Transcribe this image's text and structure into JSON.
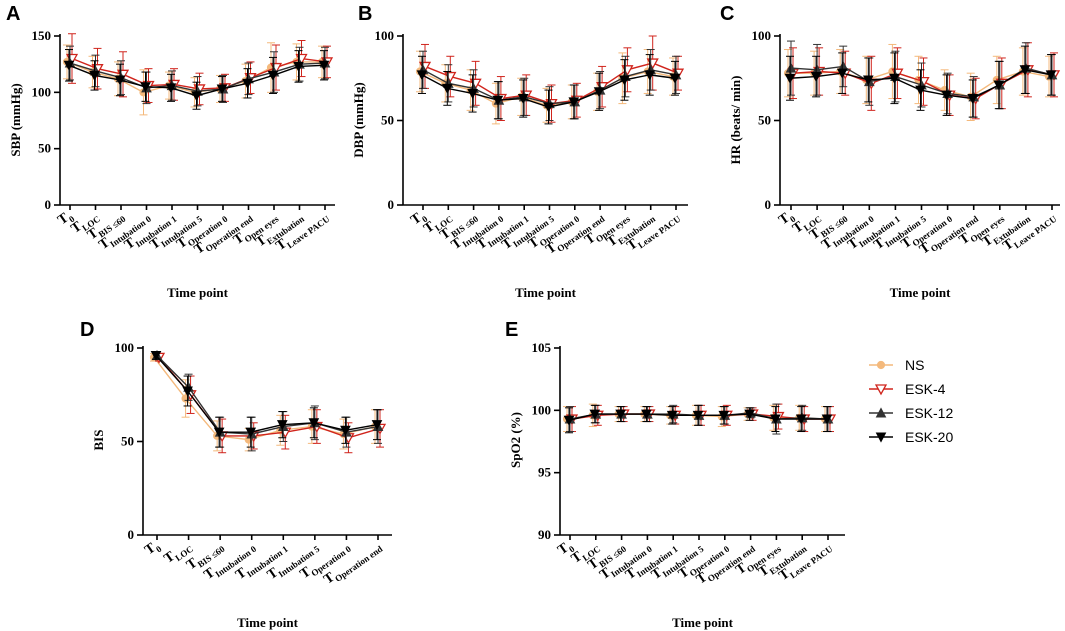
{
  "colors": {
    "NS": "#f4b97c",
    "ESK-4": "#d0241c",
    "ESK-12": "#333333",
    "ESK-20": "#000000"
  },
  "legend": [
    "NS",
    "ESK-4",
    "ESK-12",
    "ESK-20"
  ],
  "chart_data": [
    {
      "id": "A",
      "type": "line",
      "ylabel": "SBP (mmHg)",
      "xlabel": "Time point",
      "ylim": [
        0,
        150
      ],
      "yticks": [
        0,
        50,
        100,
        150
      ],
      "categories": [
        {
          "main": "T",
          "sub": "0"
        },
        {
          "main": "T",
          "sub": "LOC"
        },
        {
          "main": "T",
          "sub": "BIS ≤60"
        },
        {
          "main": "T",
          "sub": "Intubation 0"
        },
        {
          "main": "T",
          "sub": "Intubation 1"
        },
        {
          "main": "T",
          "sub": "Intubation 5"
        },
        {
          "main": "T",
          "sub": "Operation 0"
        },
        {
          "main": "T",
          "sub": "Operation end"
        },
        {
          "main": "T",
          "sub": "Open eyes"
        },
        {
          "main": "T",
          "sub": "Extubation"
        },
        {
          "main": "T",
          "sub": "Leave PACU"
        }
      ],
      "series": [
        {
          "name": "NS",
          "values": [
            127,
            118,
            112,
            100,
            106,
            100,
            103,
            110,
            122,
            127,
            127
          ],
          "err": [
            15,
            14,
            15,
            20,
            12,
            13,
            12,
            15,
            22,
            16,
            14
          ]
        },
        {
          "name": "ESK-4",
          "values": [
            130,
            121,
            116,
            106,
            107,
            103,
            104,
            113,
            122,
            130,
            127
          ],
          "err": [
            22,
            18,
            20,
            15,
            14,
            14,
            12,
            14,
            20,
            16,
            14
          ]
        },
        {
          "name": "ESK-12",
          "values": [
            126,
            119,
            113,
            104,
            106,
            101,
            103,
            112,
            118,
            125,
            126
          ],
          "err": [
            15,
            14,
            15,
            14,
            13,
            13,
            12,
            14,
            18,
            15,
            14
          ]
        },
        {
          "name": "ESK-20",
          "values": [
            124,
            115,
            111,
            105,
            104,
            97,
            103,
            108,
            115,
            123,
            124
          ],
          "err": [
            14,
            13,
            14,
            13,
            12,
            12,
            11,
            13,
            16,
            14,
            13
          ]
        }
      ]
    },
    {
      "id": "B",
      "type": "line",
      "ylabel": "DBP (mmHg)",
      "xlabel": "Time point",
      "ylim": [
        0,
        100
      ],
      "yticks": [
        0,
        50,
        100
      ],
      "categories": [
        {
          "main": "T",
          "sub": "0"
        },
        {
          "main": "T",
          "sub": "LOC"
        },
        {
          "main": "T",
          "sub": "BIS ≤60"
        },
        {
          "main": "T",
          "sub": "Intubation 0"
        },
        {
          "main": "T",
          "sub": "Intubation 1"
        },
        {
          "main": "T",
          "sub": "Intubation 5"
        },
        {
          "main": "T",
          "sub": "Operation 0"
        },
        {
          "main": "T",
          "sub": "Operation end"
        },
        {
          "main": "T",
          "sub": "Open eyes"
        },
        {
          "main": "T",
          "sub": "Extubation"
        },
        {
          "main": "T",
          "sub": "Leave PACU"
        }
      ],
      "series": [
        {
          "name": "NS",
          "values": [
            79,
            72,
            68,
            60,
            64,
            59,
            61,
            67,
            75,
            79,
            76
          ],
          "err": [
            12,
            11,
            12,
            12,
            11,
            10,
            10,
            11,
            15,
            13,
            11
          ]
        },
        {
          "name": "ESK-4",
          "values": [
            82,
            76,
            72,
            63,
            65,
            60,
            62,
            70,
            80,
            84,
            78
          ],
          "err": [
            13,
            12,
            13,
            13,
            12,
            11,
            10,
            12,
            13,
            16,
            10
          ]
        },
        {
          "name": "ESK-12",
          "values": [
            80,
            72,
            69,
            62,
            64,
            60,
            61,
            68,
            76,
            80,
            77
          ],
          "err": [
            11,
            11,
            11,
            11,
            11,
            10,
            10,
            11,
            12,
            12,
            11
          ]
        },
        {
          "name": "ESK-20",
          "values": [
            77,
            69,
            66,
            62,
            63,
            58,
            61,
            67,
            74,
            77,
            75
          ],
          "err": [
            11,
            10,
            11,
            11,
            11,
            10,
            10,
            11,
            12,
            12,
            10
          ]
        }
      ]
    },
    {
      "id": "C",
      "type": "line",
      "ylabel": "HR (beats/ min)",
      "xlabel": "Time point",
      "ylim": [
        0,
        100
      ],
      "yticks": [
        0,
        50,
        100
      ],
      "categories": [
        {
          "main": "T",
          "sub": "0"
        },
        {
          "main": "T",
          "sub": "LOC"
        },
        {
          "main": "T",
          "sub": "BIS ≤60"
        },
        {
          "main": "T",
          "sub": "Intubation 0"
        },
        {
          "main": "T",
          "sub": "Intubation 1"
        },
        {
          "main": "T",
          "sub": "Intubation 5"
        },
        {
          "main": "T",
          "sub": "Operation 0"
        },
        {
          "main": "T",
          "sub": "Operation end"
        },
        {
          "main": "T",
          "sub": "Open eyes"
        },
        {
          "main": "T",
          "sub": "Extubation"
        },
        {
          "main": "T",
          "sub": "Leave PACU"
        }
      ],
      "series": [
        {
          "name": "NS",
          "values": [
            78,
            78,
            79,
            74,
            79,
            74,
            68,
            64,
            74,
            79,
            76
          ],
          "err": [
            14,
            13,
            13,
            14,
            16,
            14,
            12,
            14,
            14,
            14,
            12
          ]
        },
        {
          "name": "ESK-4",
          "values": [
            78,
            79,
            78,
            72,
            78,
            73,
            65,
            63,
            72,
            80,
            77
          ],
          "err": [
            15,
            14,
            13,
            16,
            15,
            14,
            12,
            12,
            15,
            16,
            13
          ]
        },
        {
          "name": "ESK-12",
          "values": [
            81,
            80,
            82,
            73,
            76,
            71,
            66,
            64,
            71,
            81,
            77
          ],
          "err": [
            16,
            15,
            12,
            14,
            15,
            13,
            12,
            12,
            14,
            15,
            12
          ]
        },
        {
          "name": "ESK-20",
          "values": [
            75,
            76,
            78,
            74,
            75,
            68,
            65,
            63,
            71,
            80,
            77
          ],
          "err": [
            13,
            12,
            12,
            13,
            15,
            12,
            12,
            11,
            14,
            14,
            12
          ]
        }
      ]
    },
    {
      "id": "D",
      "type": "line",
      "ylabel": "BIS",
      "xlabel": "Time point",
      "ylim": [
        0,
        100
      ],
      "yticks": [
        0,
        50,
        100
      ],
      "categories": [
        {
          "main": "T",
          "sub": "0"
        },
        {
          "main": "T",
          "sub": "LOC"
        },
        {
          "main": "T",
          "sub": "BIS ≤60"
        },
        {
          "main": "T",
          "sub": "Intubation 0"
        },
        {
          "main": "T",
          "sub": "Intubation 1"
        },
        {
          "main": "T",
          "sub": "Intubation 5"
        },
        {
          "main": "T",
          "sub": "Operation 0"
        },
        {
          "main": "T",
          "sub": "Operation end"
        }
      ],
      "series": [
        {
          "name": "NS",
          "values": [
            95,
            73,
            53,
            51,
            56,
            58,
            54,
            58
          ],
          "err": [
            2,
            10,
            8,
            6,
            8,
            9,
            8,
            9
          ]
        },
        {
          "name": "ESK-4",
          "values": [
            95,
            75,
            53,
            53,
            55,
            58,
            52,
            57
          ],
          "err": [
            2,
            10,
            9,
            7,
            9,
            9,
            8,
            10
          ]
        },
        {
          "name": "ESK-12",
          "values": [
            96,
            79,
            55,
            54,
            58,
            60,
            55,
            58
          ],
          "err": [
            2,
            7,
            8,
            9,
            8,
            9,
            8,
            9
          ]
        },
        {
          "name": "ESK-20",
          "values": [
            96,
            77,
            55,
            55,
            59,
            60,
            56,
            59
          ],
          "err": [
            2,
            8,
            8,
            8,
            7,
            8,
            7,
            8
          ]
        }
      ]
    },
    {
      "id": "E",
      "type": "line",
      "ylabel": "SpO2 (%)",
      "xlabel": "Time point",
      "ylim": [
        90,
        105
      ],
      "yticks": [
        90,
        95,
        100,
        105
      ],
      "categories": [
        {
          "main": "T",
          "sub": "0"
        },
        {
          "main": "T",
          "sub": "LOC"
        },
        {
          "main": "T",
          "sub": "BIS ≤60"
        },
        {
          "main": "T",
          "sub": "Intubation 0"
        },
        {
          "main": "T",
          "sub": "Intubation 1"
        },
        {
          "main": "T",
          "sub": "Intubation 5"
        },
        {
          "main": "T",
          "sub": "Operation 0"
        },
        {
          "main": "T",
          "sub": "Operation end"
        },
        {
          "main": "T",
          "sub": "Open eyes"
        },
        {
          "main": "T",
          "sub": "Extubation"
        },
        {
          "main": "T",
          "sub": "Leave PACU"
        }
      ],
      "series": [
        {
          "name": "NS",
          "values": [
            99.3,
            99.6,
            99.7,
            99.7,
            99.6,
            99.6,
            99.5,
            99.7,
            99.4,
            99.4,
            99.3
          ],
          "err": [
            1.0,
            0.9,
            0.6,
            0.6,
            0.7,
            0.8,
            0.8,
            0.5,
            1.0,
            1.0,
            1.0
          ]
        },
        {
          "name": "ESK-4",
          "values": [
            99.3,
            99.6,
            99.7,
            99.7,
            99.6,
            99.6,
            99.6,
            99.7,
            99.5,
            99.3,
            99.3
          ],
          "err": [
            1.0,
            0.8,
            0.6,
            0.6,
            0.7,
            0.8,
            0.8,
            0.5,
            1.0,
            1.0,
            1.0
          ]
        },
        {
          "name": "ESK-12",
          "values": [
            99.3,
            99.7,
            99.7,
            99.7,
            99.7,
            99.6,
            99.6,
            99.8,
            99.3,
            99.4,
            99.3
          ],
          "err": [
            1.0,
            0.7,
            0.6,
            0.6,
            0.7,
            0.8,
            0.7,
            0.4,
            1.2,
            1.0,
            1.0
          ]
        },
        {
          "name": "ESK-20",
          "values": [
            99.2,
            99.7,
            99.7,
            99.7,
            99.6,
            99.6,
            99.6,
            99.7,
            99.3,
            99.3,
            99.3
          ],
          "err": [
            1.0,
            0.7,
            0.6,
            0.6,
            0.7,
            0.8,
            0.7,
            0.5,
            1.0,
            1.0,
            1.0
          ]
        }
      ]
    }
  ]
}
